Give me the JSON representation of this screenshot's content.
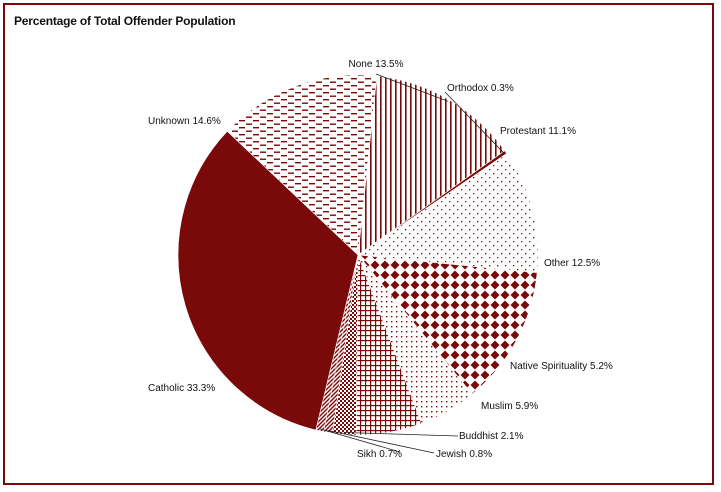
{
  "chart_data": {
    "type": "pie",
    "title": "Percentage of Total Offender Population",
    "start_category": "None",
    "direction": "clockwise",
    "colors": {
      "primary": "#7a0a0a",
      "background": "#ffffff"
    },
    "slices": [
      {
        "name": "None",
        "value": 13.5,
        "label": "None 13.5%",
        "pattern": "vertical-stripes"
      },
      {
        "name": "Orthodox",
        "value": 0.3,
        "label": "Orthodox 0.3%",
        "pattern": "solid"
      },
      {
        "name": "Protestant",
        "value": 11.1,
        "label": "Protestant 11.1%",
        "pattern": "dots-sparse"
      },
      {
        "name": "Other",
        "value": 12.5,
        "label": "Other 12.5%",
        "pattern": "diamonds"
      },
      {
        "name": "Native Spirituality",
        "value": 5.2,
        "label": "Native Spirituality 5.2%",
        "pattern": "dots-grid"
      },
      {
        "name": "Muslim",
        "value": 5.9,
        "label": "Muslim 5.9%",
        "pattern": "crosshatch"
      },
      {
        "name": "Buddhist",
        "value": 2.1,
        "label": "Buddhist 2.1%",
        "pattern": "checker"
      },
      {
        "name": "Jewish",
        "value": 0.8,
        "label": "Jewish 0.8%",
        "pattern": "diagonal"
      },
      {
        "name": "Sikh",
        "value": 0.7,
        "label": "Sikh 0.7%",
        "pattern": "diagonal"
      },
      {
        "name": "Catholic",
        "value": 33.3,
        "label": "Catholic 33.3%",
        "pattern": "solid"
      },
      {
        "name": "Unknown",
        "value": 14.6,
        "label": "Unknown 14.6%",
        "pattern": "dashes"
      }
    ]
  }
}
